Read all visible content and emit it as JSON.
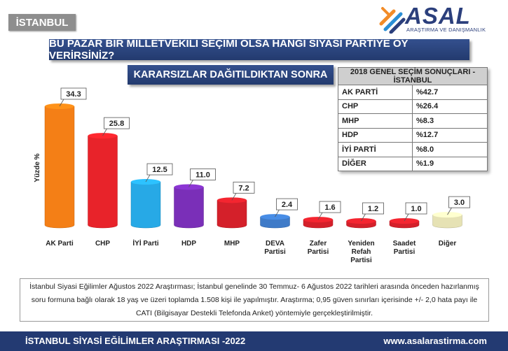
{
  "region": "İSTANBUL",
  "logo": {
    "text": "ASAL",
    "subtitle": "ARAŞTIRMA VE DANIŞMANLIK",
    "colors": [
      "#f28c28",
      "#2a8fd6",
      "#2b3f7c"
    ]
  },
  "question": "BU PAZAR BİR MİLLETVEKİLİ SEÇİMİ OLSA HANGİ SİYASİ PARTİYE OY VERİRSİNİZ?",
  "subtitle": "KARARSIZLAR DAĞITILDIKTAN SONRA",
  "results_table": {
    "title": "2018 GENEL SEÇİM SONUÇLARI - İSTANBUL",
    "rows": [
      {
        "party": "AK PARTİ",
        "value": "%42.7"
      },
      {
        "party": "CHP",
        "value": "%26.4"
      },
      {
        "party": "MHP",
        "value": "%8.3"
      },
      {
        "party": "HDP",
        "value": "%12.7"
      },
      {
        "party": "İYİ PARTİ",
        "value": "%8.0"
      },
      {
        "party": "DİĞER",
        "value": "%1.9"
      }
    ]
  },
  "chart_data": {
    "type": "bar",
    "title": "",
    "xlabel": "",
    "ylabel": "Yüzde %",
    "ylim": [
      0,
      36
    ],
    "grid": false,
    "categories": [
      [
        "AK Parti"
      ],
      [
        "CHP"
      ],
      [
        "İYİ Parti"
      ],
      [
        "HDP"
      ],
      [
        "MHP"
      ],
      [
        "DEVA",
        "Partisi"
      ],
      [
        "Zafer",
        "Partisi"
      ],
      [
        "Yeniden",
        "Refah",
        "Partisi"
      ],
      [
        "Saadet",
        "Partisi"
      ],
      [
        "Diğer"
      ]
    ],
    "values": [
      34.3,
      25.8,
      12.5,
      11.0,
      7.2,
      2.4,
      1.6,
      1.2,
      1.0,
      3.0
    ],
    "value_labels": [
      "34.3",
      "25.8",
      "12.5",
      "11.0",
      "7.2",
      "2.4",
      "1.6",
      "1.2",
      "1.0",
      "3.0"
    ],
    "colors": [
      "#f47f16",
      "#e8232a",
      "#27a9e6",
      "#7a2fb8",
      "#d4202a",
      "#3f7bc8",
      "#d4202a",
      "#d4202a",
      "#d4202a",
      "#e6e2b4"
    ]
  },
  "footnote": [
    "İstanbul Siyasi Eğilimler Ağustos 2022 Araştırması; İstanbul genelinde 30 Temmuz- 6 Ağustos 2022 tarihleri arasında önceden hazırlanmış",
    "soru formuna bağlı olarak 18 yaş ve üzeri toplamda 1.508 kişi ile yapılmıştır. Araştırma; 0,95 güven sınırları içerisinde +/- 2,0 hata payı ile",
    "CATI (Bilgisayar Destekli Telefonda Anket) yöntemiyle gerçekleştirilmiştir."
  ],
  "footer": {
    "left": "İSTANBUL SİYASİ EĞİLİMLER ARAŞTIRMASI -2022",
    "right": "www.asalarastirma.com"
  }
}
